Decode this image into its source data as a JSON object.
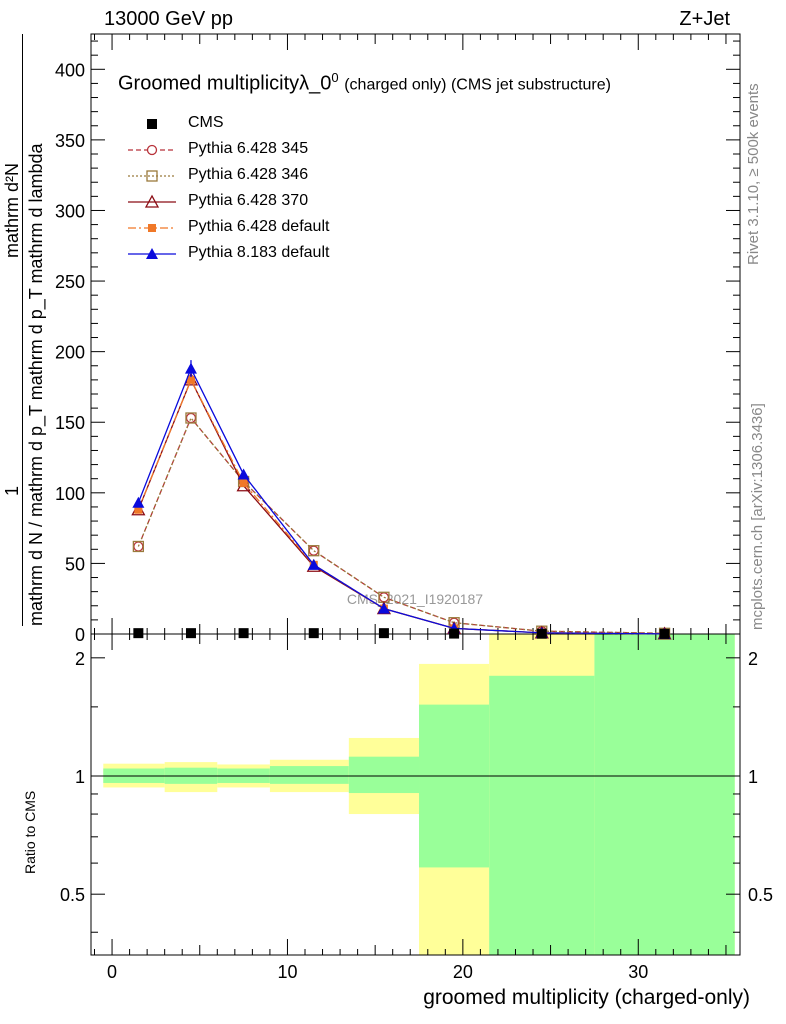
{
  "header": {
    "energy_label": "13000 GeV pp",
    "process_label": "Z+Jet"
  },
  "side_labels": {
    "rivet": "Rivet 3.1.10, ≥ 500k events",
    "mcplots": "mcplots.cern.ch [arXiv:1306.3436]"
  },
  "chart_data": {
    "type": "line",
    "title": "Groomed multiplicityλ_0",
    "title_superscript": "0",
    "title_suffix": "(charged only) (CMS jet substructure)",
    "watermark": "CMS_2021_I1920187",
    "ylabel_numerator": "mathrm d²N",
    "ylabel_denominator": "mathrm d N / mathrm d p_T mathrm d p_T mathrm d lambda",
    "ylabel_prefix": "1",
    "ratio_ylabel": "Ratio to CMS",
    "xlabel": "groomed multiplicity (charged-only)",
    "xlim": [
      -1.2,
      35.8
    ],
    "ylim": [
      0,
      425
    ],
    "ratio_ylim": [
      0.35,
      2.3
    ],
    "x_ticks": [
      "0",
      "10",
      "20",
      "30"
    ],
    "y_ticks": [
      "0",
      "50",
      "100",
      "150",
      "200",
      "250",
      "300",
      "350",
      "400"
    ],
    "ratio_ticks": [
      "0.5",
      "1",
      "2"
    ],
    "x": [
      1.5,
      4.5,
      7.5,
      11.5,
      15.5,
      19.5,
      24.5,
      31.5
    ],
    "cms": [
      0.6,
      0.6,
      0.6,
      0.6,
      0.6,
      0.3,
      0.2,
      0.1
    ],
    "series": [
      {
        "name": "Pythia 6.428 345",
        "color": "#b8323a",
        "dash": "5,3",
        "marker": "open-circle",
        "values": [
          62,
          153,
          108,
          59,
          26,
          8,
          2,
          0.5
        ]
      },
      {
        "name": "Pythia 6.428 346",
        "color": "#9a7a3c",
        "dash": "2,2",
        "marker": "open-square",
        "values": [
          62,
          153,
          108,
          59,
          26,
          8,
          2,
          0.5
        ]
      },
      {
        "name": "Pythia 6.428 370",
        "color": "#8b0c14",
        "dash": "",
        "marker": "open-triangle",
        "values": [
          88,
          180,
          105,
          48,
          18,
          4,
          0.8,
          0.1
        ]
      },
      {
        "name": "Pythia 6.428 default",
        "color": "#f07828",
        "dash": "8,3,2,3",
        "marker": "filled-square",
        "values": [
          88,
          180,
          107,
          49,
          18,
          4,
          0.8,
          0.1
        ]
      },
      {
        "name": "Pythia 8.183 default",
        "color": "#0a0adc",
        "dash": "",
        "marker": "filled-triangle",
        "values": [
          93,
          188,
          113,
          49,
          18,
          4,
          0.8,
          0.1
        ]
      }
    ],
    "cms_legend": "CMS",
    "ratio_bands": [
      {
        "x0": -0.5,
        "x1": 3,
        "yellow": [
          0.935,
          1.075
        ],
        "green": [
          0.96,
          1.045
        ]
      },
      {
        "x0": 3,
        "x1": 6,
        "yellow": [
          0.91,
          1.085
        ],
        "green": [
          0.955,
          1.05
        ]
      },
      {
        "x0": 6,
        "x1": 9,
        "yellow": [
          0.935,
          1.07
        ],
        "green": [
          0.96,
          1.045
        ]
      },
      {
        "x0": 9,
        "x1": 13.5,
        "yellow": [
          0.91,
          1.1
        ],
        "green": [
          0.955,
          1.06
        ]
      },
      {
        "x0": 13.5,
        "x1": 17.5,
        "yellow": [
          0.8,
          1.25
        ],
        "green": [
          0.905,
          1.12
        ]
      },
      {
        "x0": 17.5,
        "x1": 21.5,
        "yellow": [
          0.35,
          1.93
        ],
        "green": [
          0.585,
          1.52
        ]
      },
      {
        "x0": 21.5,
        "x1": 27.5,
        "yellow": [
          0.35,
          2.3
        ],
        "green": [
          0.35,
          1.8
        ]
      },
      {
        "x0": 27.5,
        "x1": 35.5,
        "yellow": [
          0.35,
          2.3
        ],
        "green": [
          0.35,
          2.3
        ]
      }
    ]
  }
}
